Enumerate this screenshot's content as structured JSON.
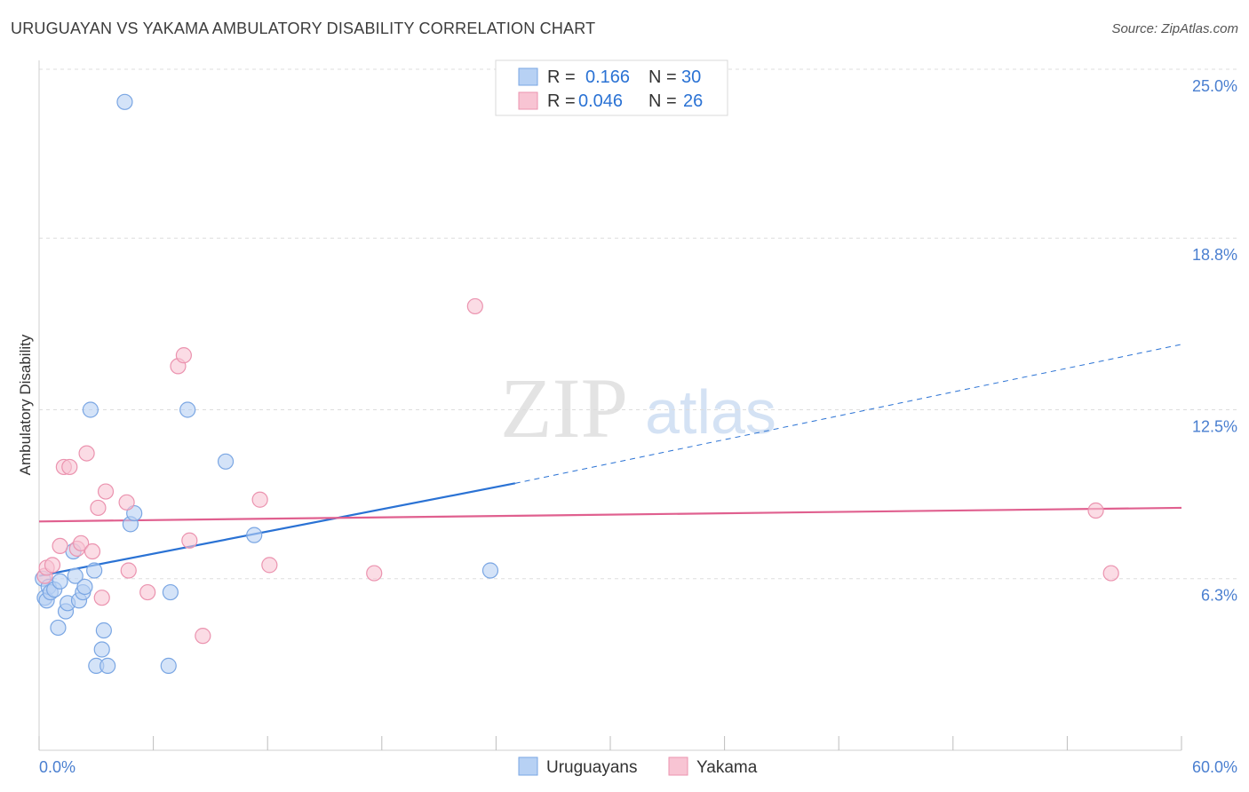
{
  "header": {
    "title": "URUGUAYAN VS YAKAMA AMBULATORY DISABILITY CORRELATION CHART",
    "source": "Source: ZipAtlas.com"
  },
  "watermark": {
    "zip": "ZIP",
    "atlas": "atlas"
  },
  "colors": {
    "uruguayans_fill": "#b7d1f4",
    "uruguayans_stroke": "#7aa6e3",
    "uruguayans_line": "#2a72d4",
    "yakama_fill": "#f8c4d3",
    "yakama_stroke": "#eb93af",
    "yakama_line": "#e0608f",
    "tick_text": "#4a7fd0",
    "grid": "#dddddd"
  },
  "legend": {
    "rows": [
      {
        "r_label": "R =",
        "r_value": "0.166",
        "n_label": "N =",
        "n_value": "30"
      },
      {
        "r_label": "R =",
        "r_value": "0.046",
        "n_label": "N =",
        "n_value": "26"
      }
    ]
  },
  "chart_data": {
    "type": "scatter",
    "title": "URUGUAYAN VS YAKAMA AMBULATORY DISABILITY CORRELATION CHART",
    "xlabel": "",
    "ylabel": "Ambulatory Disability",
    "xlim": [
      0,
      60
    ],
    "ylim": [
      0,
      25.0
    ],
    "x_tick_labels": {
      "min": "0.0%",
      "max": "60.0%"
    },
    "y_ticks": [
      {
        "value": 6.3,
        "label": "6.3%"
      },
      {
        "value": 12.5,
        "label": "12.5%"
      },
      {
        "value": 18.8,
        "label": "18.8%"
      },
      {
        "value": 25.0,
        "label": "25.0%"
      }
    ],
    "series": [
      {
        "name": "Uruguayans",
        "r": 0.166,
        "n": 30,
        "points": [
          [
            0.2,
            6.3
          ],
          [
            0.3,
            5.6
          ],
          [
            0.4,
            5.5
          ],
          [
            0.5,
            6.0
          ],
          [
            0.6,
            5.8
          ],
          [
            0.8,
            5.9
          ],
          [
            1.0,
            4.5
          ],
          [
            1.1,
            6.2
          ],
          [
            1.4,
            5.1
          ],
          [
            1.5,
            5.4
          ],
          [
            1.8,
            7.3
          ],
          [
            1.9,
            6.4
          ],
          [
            2.1,
            5.5
          ],
          [
            2.3,
            5.8
          ],
          [
            2.4,
            6.0
          ],
          [
            2.7,
            12.5
          ],
          [
            2.9,
            6.6
          ],
          [
            3.0,
            3.1
          ],
          [
            3.3,
            3.7
          ],
          [
            3.4,
            4.4
          ],
          [
            3.6,
            3.1
          ],
          [
            4.5,
            23.8
          ],
          [
            4.8,
            8.3
          ],
          [
            5.0,
            8.7
          ],
          [
            6.8,
            3.1
          ],
          [
            6.9,
            5.8
          ],
          [
            7.8,
            12.5
          ],
          [
            9.8,
            10.6
          ],
          [
            11.3,
            7.9
          ],
          [
            23.7,
            6.6
          ]
        ],
        "trend": {
          "x0": 0,
          "y0": 6.4,
          "x1": 25,
          "y1": 9.8,
          "dash_x1": 60,
          "dash_y1": 14.9
        }
      },
      {
        "name": "Yakama",
        "r": 0.046,
        "n": 26,
        "points": [
          [
            0.3,
            6.4
          ],
          [
            0.4,
            6.7
          ],
          [
            0.7,
            6.8
          ],
          [
            1.1,
            7.5
          ],
          [
            1.3,
            10.4
          ],
          [
            1.6,
            10.4
          ],
          [
            2.0,
            7.4
          ],
          [
            2.2,
            7.6
          ],
          [
            2.5,
            10.9
          ],
          [
            2.8,
            7.3
          ],
          [
            3.1,
            8.9
          ],
          [
            3.3,
            5.6
          ],
          [
            3.5,
            9.5
          ],
          [
            4.6,
            9.1
          ],
          [
            4.7,
            6.6
          ],
          [
            5.7,
            5.8
          ],
          [
            7.3,
            14.1
          ],
          [
            7.6,
            14.5
          ],
          [
            7.9,
            7.7
          ],
          [
            8.6,
            4.2
          ],
          [
            11.6,
            9.2
          ],
          [
            12.1,
            6.8
          ],
          [
            17.6,
            6.5
          ],
          [
            22.9,
            16.3
          ],
          [
            55.5,
            8.8
          ],
          [
            56.3,
            6.5
          ]
        ],
        "trend": {
          "x0": 0,
          "y0": 8.4,
          "x1": 60,
          "y1": 8.9
        }
      }
    ]
  }
}
